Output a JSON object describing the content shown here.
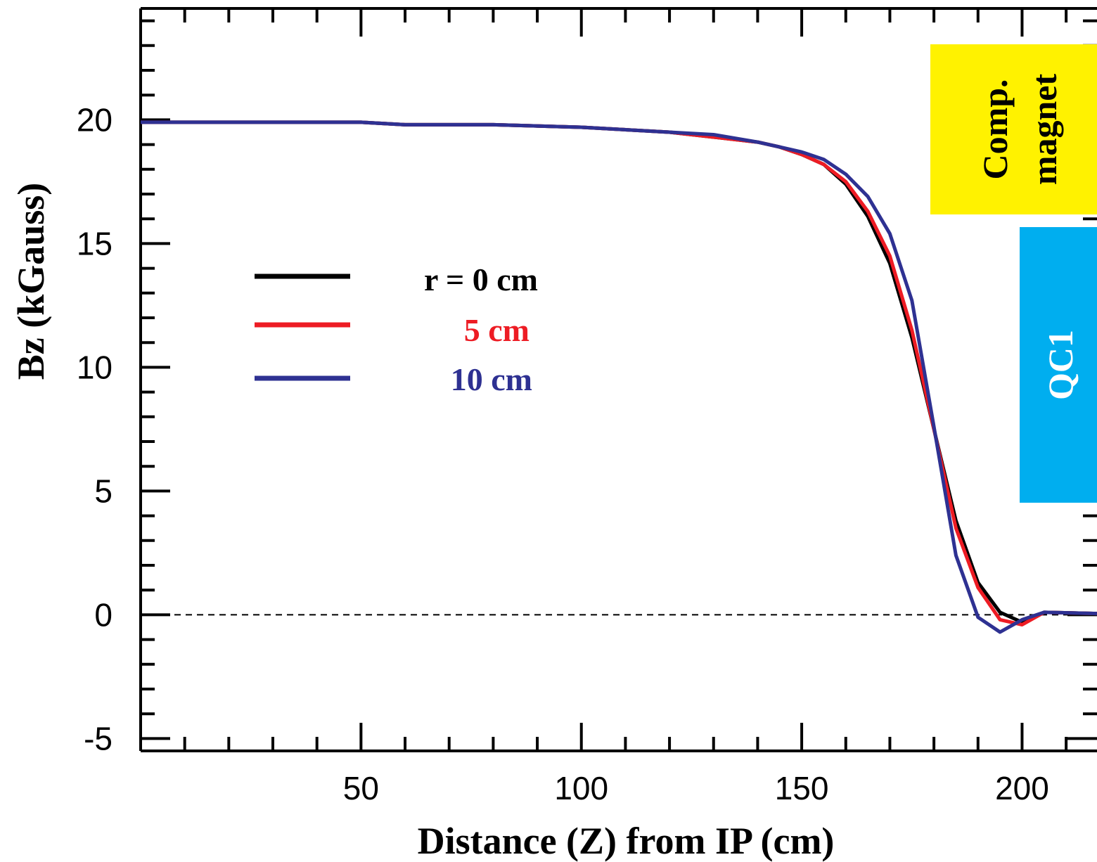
{
  "chart_data": {
    "type": "line",
    "xlabel": "Distance (Z) from IP (cm)",
    "ylabel": "Bz (kGauss)",
    "xlim": [
      0,
      217
    ],
    "ylim": [
      -5.5,
      24.5
    ],
    "x_ticks": [
      "50",
      "100",
      "150",
      "200"
    ],
    "x_tick_values": [
      50,
      100,
      150,
      200
    ],
    "y_ticks": [
      "-5",
      "0",
      "5",
      "10",
      "15",
      "20"
    ],
    "y_tick_values": [
      -5,
      0,
      5,
      10,
      15,
      20
    ],
    "zero_line": true,
    "legend": {
      "placement": "middle-left",
      "entries": [
        "r = 0 cm",
        "5 cm",
        "10 cm"
      ]
    },
    "annotations": [
      {
        "text_lines": [
          "Comp.",
          "magnet"
        ],
        "color": "#fff200",
        "text_color": "#000000"
      },
      {
        "text_lines": [
          "QC1"
        ],
        "color": "#00aeef",
        "text_color": "#ffffff"
      }
    ],
    "series": [
      {
        "name": "r = 0 cm",
        "color": "#000000",
        "x": [
          0,
          50,
          60,
          80,
          100,
          120,
          130,
          140,
          145,
          150,
          155,
          160,
          165,
          170,
          175,
          180,
          185,
          190,
          195,
          200,
          205,
          217
        ],
        "y": [
          19.9,
          19.9,
          19.8,
          19.8,
          19.7,
          19.5,
          19.3,
          19.1,
          18.9,
          18.6,
          18.2,
          17.4,
          16.1,
          14.2,
          11.2,
          7.5,
          3.8,
          1.3,
          0.1,
          -0.3,
          0.1,
          0.05
        ]
      },
      {
        "name": "5 cm",
        "color": "#ed1c24",
        "x": [
          0,
          50,
          60,
          80,
          100,
          120,
          130,
          140,
          145,
          150,
          155,
          160,
          165,
          170,
          175,
          180,
          185,
          190,
          195,
          200,
          205,
          217
        ],
        "y": [
          19.9,
          19.9,
          19.8,
          19.8,
          19.7,
          19.5,
          19.3,
          19.1,
          18.9,
          18.6,
          18.2,
          17.5,
          16.3,
          14.5,
          11.5,
          7.5,
          3.5,
          1.1,
          -0.2,
          -0.4,
          0.1,
          0.05
        ]
      },
      {
        "name": "10 cm",
        "color": "#2e3192",
        "x": [
          0,
          50,
          60,
          80,
          100,
          120,
          130,
          140,
          145,
          150,
          155,
          160,
          165,
          170,
          175,
          180,
          185,
          190,
          195,
          200,
          205,
          217
        ],
        "y": [
          19.9,
          19.9,
          19.8,
          19.8,
          19.7,
          19.5,
          19.4,
          19.1,
          18.9,
          18.7,
          18.4,
          17.8,
          16.9,
          15.4,
          12.7,
          7.6,
          2.4,
          -0.1,
          -0.7,
          -0.2,
          0.1,
          0.05
        ]
      }
    ]
  }
}
